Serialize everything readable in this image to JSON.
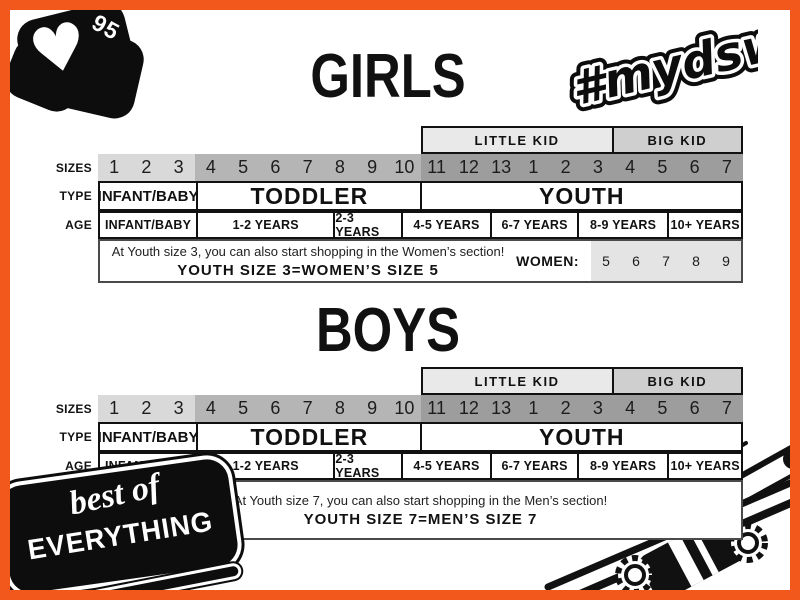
{
  "badge": {
    "likes": "95",
    "heart_icon": "♥"
  },
  "hashtag": {
    "text": "#mydsw"
  },
  "sticker": {
    "line1": "best of",
    "line2": "EVERYTHING"
  },
  "sections": {
    "girls": {
      "title": "GIRLS",
      "kid_groups": {
        "little": "LITTLE KID",
        "big": "BIG KID"
      },
      "row_labels": {
        "sizes": "SIZES",
        "type": "TYPE",
        "age": "AGE"
      },
      "sizes": {
        "infant": [
          "1",
          "2",
          "3"
        ],
        "toddler": [
          "4",
          "5",
          "6",
          "7",
          "8",
          "9",
          "10"
        ],
        "youth": [
          "11",
          "12",
          "13",
          "1",
          "2",
          "3",
          "4",
          "5",
          "6",
          "7"
        ]
      },
      "types": [
        "INFANT/BABY",
        "TODDLER",
        "YOUTH"
      ],
      "ages": [
        "INFANT/BABY",
        "1-2 YEARS",
        "2-3 YEARS",
        "4-5 YEARS",
        "6-7 YEARS",
        "8-9 YEARS",
        "10+ YEARS"
      ],
      "note": {
        "line1": "At Youth size 3, you can also start shopping in the Women’s section!",
        "line2": "YOUTH SIZE 3=WOMEN’S SIZE 5"
      },
      "adult_label": "WOMEN:",
      "adult_sizes": [
        "5",
        "6",
        "7",
        "8",
        "9"
      ]
    },
    "boys": {
      "title": "BOYS",
      "kid_groups": {
        "little": "LITTLE KID",
        "big": "BIG KID"
      },
      "row_labels": {
        "sizes": "SIZES",
        "type": "TYPE",
        "age": "AGE"
      },
      "sizes": {
        "infant": [
          "1",
          "2",
          "3"
        ],
        "toddler": [
          "4",
          "5",
          "6",
          "7",
          "8",
          "9",
          "10"
        ],
        "youth": [
          "11",
          "12",
          "13",
          "1",
          "2",
          "3",
          "4",
          "5",
          "6",
          "7"
        ]
      },
      "types": [
        "INFANT/BABY",
        "TODDLER",
        "YOUTH"
      ],
      "ages": [
        "INFANT/BABY",
        "1-2 YEARS",
        "2-3 YEARS",
        "4-5 YEARS",
        "6-7 YEARS",
        "8-9 YEARS",
        "10+ YEARS"
      ],
      "note": {
        "line1": "At Youth size 7, you can also start shopping in the Men’s section!",
        "line2": "YOUTH SIZE 7=MEN’S SIZE 7"
      }
    }
  },
  "colors": {
    "frame": "#F2581C",
    "ink": "#111111",
    "paper": "#FFFFFF",
    "band_infant": "#D9D9D9",
    "band_toddler": "#B5B5B5",
    "band_youth": "#9D9D9D",
    "little_kid": "#E9E9E9",
    "big_kid": "#CFCFCF",
    "adult_box": "#E4E4E4"
  }
}
